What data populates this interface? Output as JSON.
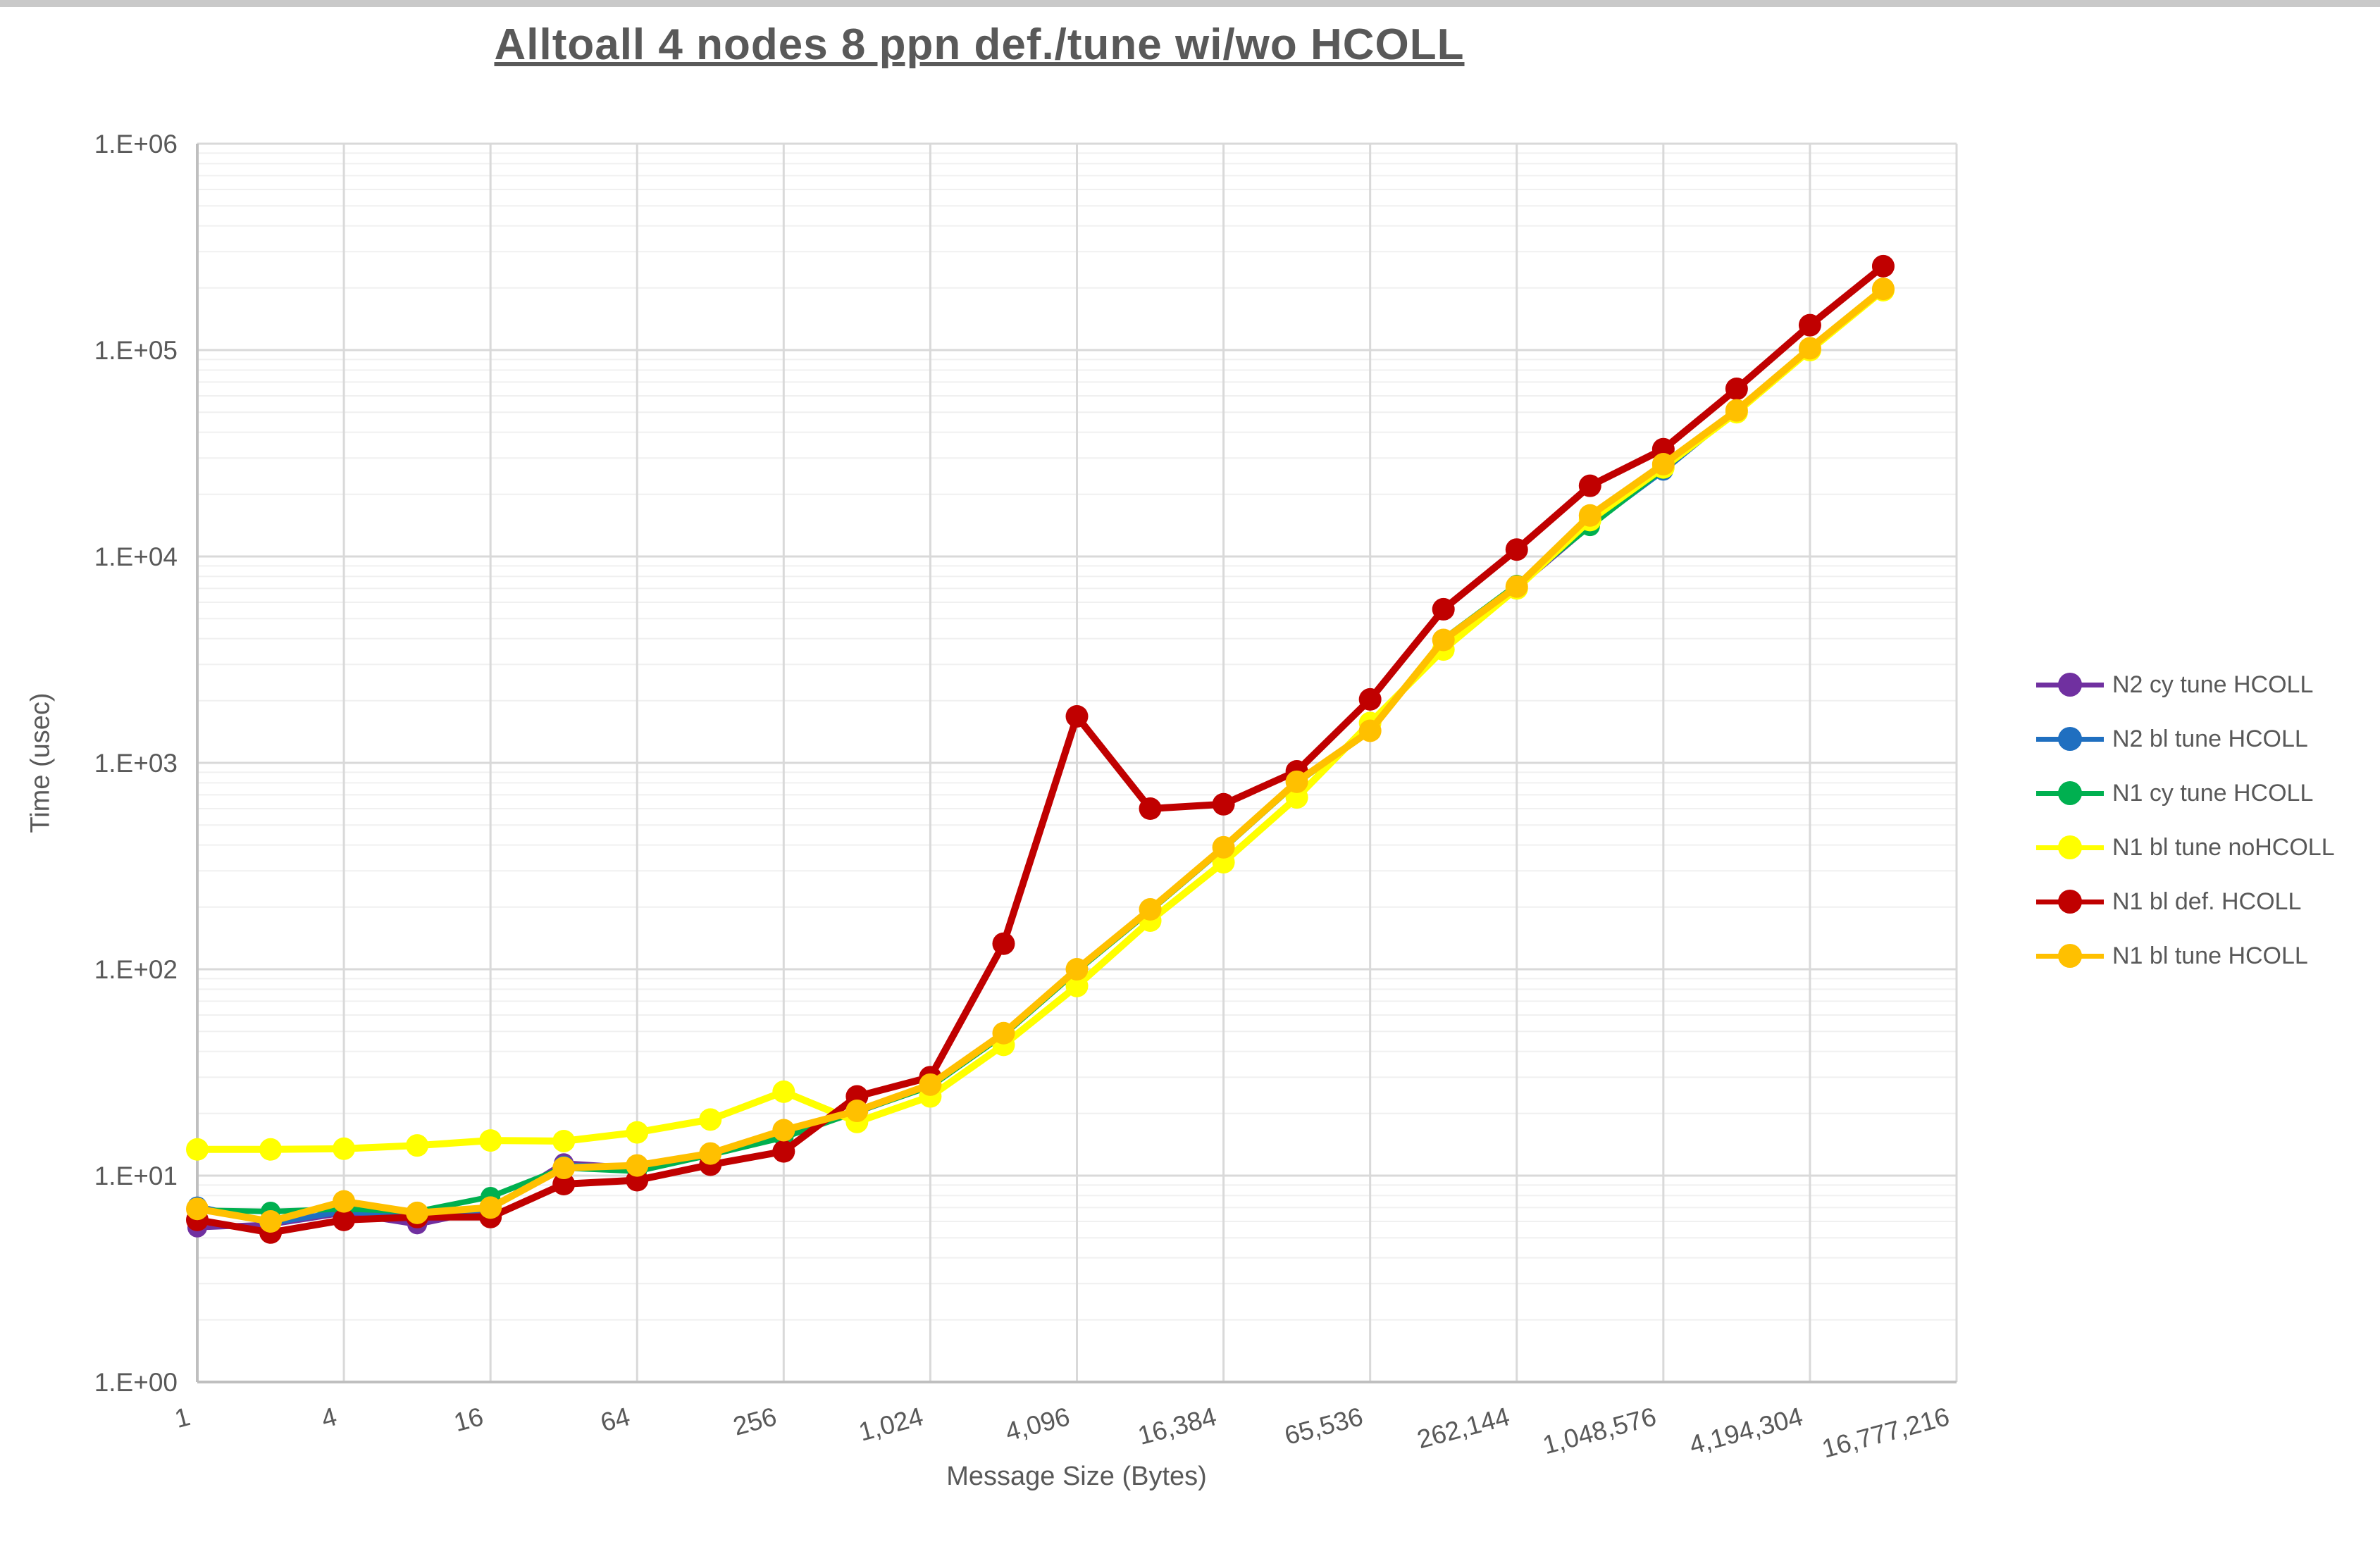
{
  "window": {
    "top_edge": ""
  },
  "chart_data": {
    "type": "line",
    "title": "Alltoall 4 nodes 8 ppn def./tune wi/wo HCOLL",
    "xlabel": "Message Size (Bytes)",
    "ylabel": "Time (usec)",
    "x_scale": "log2-category",
    "y_scale": "log10",
    "ylim": [
      1,
      1000000
    ],
    "y_tick_labels": [
      "1.E+00",
      "1.E+01",
      "1.E+02",
      "1.E+03",
      "1.E+04",
      "1.E+05",
      "1.E+06"
    ],
    "x_tick_labels": [
      "1",
      "4",
      "16",
      "64",
      "256",
      "1,024",
      "4,096",
      "16,384",
      "65,536",
      "262,144",
      "1,048,576",
      "4,194,304",
      "16,777,216"
    ],
    "x_categories_bytes": [
      1,
      2,
      4,
      8,
      16,
      32,
      64,
      128,
      256,
      512,
      1024,
      2048,
      4096,
      8192,
      16384,
      32768,
      65536,
      131072,
      262144,
      524288,
      1048576,
      2097152,
      4194304,
      8388608
    ],
    "grid": "major-and-minor",
    "legend_position": "right",
    "series": [
      {
        "name": "N2 cy tune HCOLL",
        "color": "#7030A0",
        "values": [
          5.6,
          5.8,
          6.6,
          5.8,
          6.9,
          11.5,
          10.9,
          12.7,
          15.5,
          20.5,
          27.3,
          48.2,
          98.5,
          194,
          387,
          807,
          1428,
          3920,
          7050,
          14100,
          26200,
          50600,
          100500,
          196500
        ]
      },
      {
        "name": "N2 bl tune HCOLL",
        "color": "#1F6FC0",
        "values": [
          7.1,
          5.9,
          6.7,
          6.4,
          6.9,
          11.2,
          11.0,
          12.7,
          15.6,
          20.3,
          27.2,
          48.5,
          99,
          193,
          386,
          805,
          1425,
          3900,
          7100,
          14200,
          26000,
          50800,
          101000,
          197000
        ]
      },
      {
        "name": "N1 cy tune HCOLL",
        "color": "#00B050",
        "values": [
          6.8,
          6.7,
          6.9,
          6.7,
          7.9,
          10.9,
          10.5,
          12.6,
          15.3,
          20.4,
          27.0,
          48,
          98,
          192,
          385,
          800,
          1420,
          3980,
          7300,
          14000,
          26500,
          50500,
          100000,
          196000
        ]
      },
      {
        "name": "N1 bl tune noHCOLL",
        "color": "#FFFF00",
        "values": [
          13.4,
          13.4,
          13.5,
          14.0,
          14.8,
          14.7,
          16.2,
          18.7,
          25.5,
          18.2,
          24.2,
          43,
          83,
          172,
          330,
          680,
          1560,
          3540,
          7000,
          15000,
          27000,
          50000,
          100000,
          195000
        ]
      },
      {
        "name": "N1 bl def. HCOLL",
        "color": "#C00000",
        "values": [
          6.1,
          5.3,
          6.1,
          6.3,
          6.3,
          9.1,
          9.5,
          11.3,
          13.1,
          24.2,
          30,
          133,
          1680,
          600,
          630,
          910,
          2030,
          5550,
          10800,
          22000,
          33100,
          64900,
          132000,
          255000
        ]
      },
      {
        "name": "N1 bl tune HCOLL",
        "color": "#FFC000",
        "values": [
          6.9,
          6.0,
          7.5,
          6.6,
          7.0,
          10.9,
          11.2,
          12.8,
          16.6,
          20.6,
          27.6,
          49,
          100,
          195,
          390,
          810,
          1430,
          3940,
          7150,
          15800,
          28000,
          51000,
          102000,
          198000
        ]
      }
    ]
  }
}
